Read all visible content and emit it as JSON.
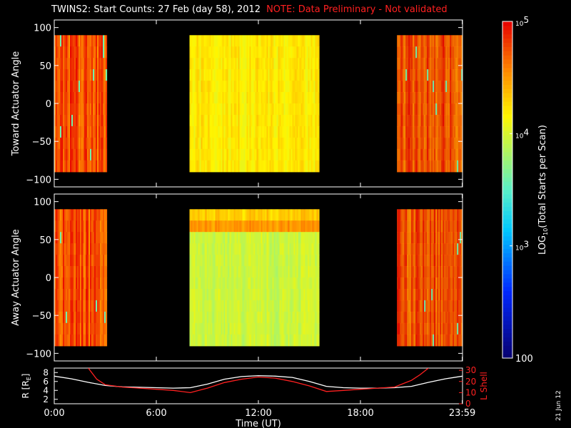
{
  "title": {
    "main": "TWINS2: Start Counts: 27 Feb (day  58), 2012",
    "note": "NOTE: Data Preliminary - Not validated"
  },
  "date_stamp": "21 Jun 12",
  "colorbar": {
    "label_parts": [
      "LOG",
      "10",
      "(Total Starts per Scan)"
    ],
    "ticks": [
      {
        "value": 100,
        "text": "100"
      },
      {
        "value": 1000,
        "base": "10",
        "exp": "3"
      },
      {
        "value": 10000,
        "base": "10",
        "exp": "4"
      },
      {
        "value": 100000,
        "base": "10",
        "exp": "5"
      }
    ],
    "range": [
      100,
      100000
    ]
  },
  "time_axis": {
    "label": "Time (UT)",
    "ticks": [
      {
        "hour": 0,
        "text": "0:00"
      },
      {
        "hour": 6,
        "text": "6:00"
      },
      {
        "hour": 12,
        "text": "12:00"
      },
      {
        "hour": 18,
        "text": "18:00"
      },
      {
        "hour": 23.983,
        "text": "23:59"
      }
    ]
  },
  "chart_data": [
    {
      "type": "heatmap",
      "ylabel": "Toward Actuator Angle",
      "xlim": [
        0,
        24
      ],
      "ylim": [
        -110,
        110
      ],
      "y_ticks": [
        -100,
        -50,
        0,
        50,
        100
      ],
      "angle_range": [
        -90,
        90
      ],
      "data_segments_hours": [
        [
          0,
          3.05,
          "high"
        ],
        [
          7.95,
          15.55,
          "mid"
        ],
        [
          20.15,
          24,
          "high"
        ]
      ],
      "approx_log10_counts": {
        "high": 4.75,
        "mid": 4.2
      },
      "colorbar_range": [
        100,
        100000
      ]
    },
    {
      "type": "heatmap",
      "ylabel": "Away Actuator Angle",
      "xlim": [
        0,
        24
      ],
      "ylim": [
        -110,
        110
      ],
      "y_ticks": [
        -100,
        -50,
        0,
        50,
        100
      ],
      "angle_range": [
        -90,
        90
      ],
      "data_segments_hours": [
        [
          0,
          3.05,
          "high"
        ],
        [
          7.95,
          15.55,
          "mid"
        ],
        [
          20.15,
          24,
          "high"
        ]
      ],
      "approx_log10_counts": {
        "high": 4.75,
        "mid": 3.95
      },
      "colorbar_range": [
        100,
        100000
      ]
    },
    {
      "type": "line",
      "ylabel_left": "R [RE]",
      "ylabel_left_parts": [
        "R [R",
        "E",
        "]"
      ],
      "ylabel_right": "L Shell",
      "ylim_left": [
        1,
        9
      ],
      "ylim_right": [
        0,
        32
      ],
      "y_ticks_left": [
        2,
        4,
        6,
        8
      ],
      "y_ticks_right": [
        0,
        10,
        20,
        30
      ],
      "series": [
        {
          "name": "R [RE]",
          "axis": "left",
          "color": "#ffffff",
          "x": [
            0,
            1,
            2,
            3,
            4,
            5,
            6,
            7,
            8,
            9,
            10,
            11,
            12,
            13,
            14,
            15,
            16,
            17,
            18,
            19,
            20,
            21,
            22,
            23,
            24
          ],
          "y": [
            7.2,
            6.6,
            5.8,
            5.1,
            4.8,
            4.7,
            4.6,
            4.5,
            4.6,
            5.4,
            6.5,
            7.1,
            7.3,
            7.2,
            6.9,
            6.0,
            4.9,
            4.6,
            4.5,
            4.5,
            4.6,
            4.9,
            5.8,
            6.6,
            7.2
          ]
        },
        {
          "name": "L Shell",
          "axis": "right",
          "color": "#ff2020",
          "x": [
            2.0,
            2.5,
            3.0,
            4.0,
            5.0,
            6.0,
            7.0,
            8.0,
            9.0,
            10.0,
            11.0,
            12.0,
            13.0,
            14.0,
            15.0,
            16.0,
            17.0,
            18.0,
            19.0,
            20.0,
            20.5,
            21.0,
            21.5,
            22.0
          ],
          "y": [
            32,
            22,
            17,
            15,
            14,
            13,
            12,
            10,
            14,
            19,
            22,
            24,
            23,
            20,
            16,
            11,
            12,
            13,
            14,
            15,
            18,
            21,
            26,
            32
          ]
        }
      ]
    }
  ]
}
